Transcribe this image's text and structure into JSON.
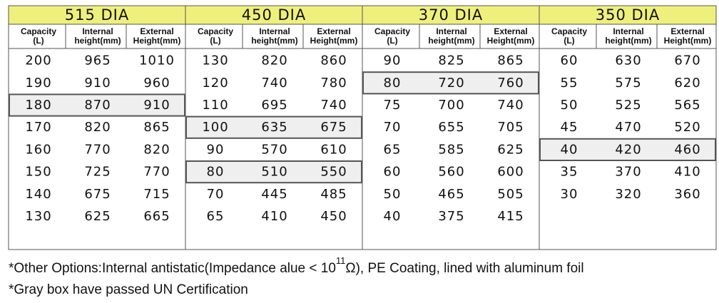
{
  "panels": [
    {
      "title": "515 DIA",
      "columns": [
        [
          "Capacity",
          "(L)"
        ],
        [
          "Internal",
          "height(mm)"
        ],
        [
          "External",
          "Height(mm)"
        ]
      ],
      "rows": [
        [
          200,
          965,
          1010
        ],
        [
          190,
          910,
          960
        ],
        [
          180,
          870,
          910
        ],
        [
          170,
          820,
          865
        ],
        [
          160,
          770,
          820
        ],
        [
          150,
          725,
          770
        ],
        [
          140,
          675,
          715
        ],
        [
          130,
          625,
          665
        ]
      ],
      "gray_rows": [
        2
      ]
    },
    {
      "title": "450 DIA",
      "columns": [
        [
          "Capacity",
          "(L)"
        ],
        [
          "Internal",
          "height(mm)"
        ],
        [
          "External",
          "Height(mm)"
        ]
      ],
      "rows": [
        [
          130,
          820,
          860
        ],
        [
          120,
          740,
          780
        ],
        [
          110,
          695,
          740
        ],
        [
          100,
          635,
          675
        ],
        [
          90,
          570,
          610
        ],
        [
          80,
          510,
          550
        ],
        [
          70,
          445,
          485
        ],
        [
          65,
          410,
          450
        ]
      ],
      "gray_rows": [
        3,
        5
      ]
    },
    {
      "title": "370 DIA",
      "columns": [
        [
          "Capacity",
          "(L)"
        ],
        [
          "Internal",
          "height(mm)"
        ],
        [
          "External",
          "Height(mm)"
        ]
      ],
      "rows": [
        [
          90,
          825,
          865
        ],
        [
          80,
          720,
          760
        ],
        [
          75,
          700,
          740
        ],
        [
          70,
          655,
          705
        ],
        [
          65,
          585,
          625
        ],
        [
          60,
          560,
          600
        ],
        [
          50,
          465,
          505
        ],
        [
          40,
          375,
          415
        ]
      ],
      "gray_rows": [
        1
      ]
    },
    {
      "title": "350 DIA",
      "columns": [
        [
          "Capacity",
          "(L)"
        ],
        [
          "Internal",
          "height(mm)"
        ],
        [
          "External",
          "Height(mm)"
        ]
      ],
      "rows": [
        [
          60,
          630,
          670
        ],
        [
          55,
          575,
          620
        ],
        [
          50,
          525,
          565
        ],
        [
          45,
          470,
          520
        ],
        [
          40,
          420,
          460
        ],
        [
          35,
          370,
          410
        ],
        [
          30,
          320,
          360
        ]
      ],
      "gray_rows": [
        4
      ]
    }
  ],
  "notes": {
    "note_1": {
      "text": "*Other Options:Internal antistatic(Impedance alue < 10",
      "superscript": "11",
      "text_after": "Ω), PE Coating, lined with aluminum foil"
    },
    "note_2": "*Gray box have passed UN Certification"
  }
}
